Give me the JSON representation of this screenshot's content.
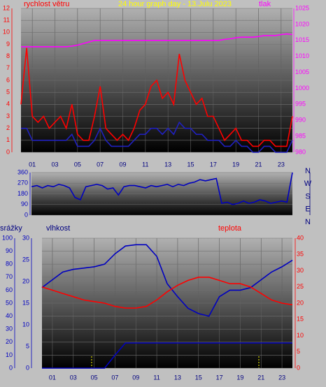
{
  "chart_data": [
    {
      "type": "line",
      "title": "24 hour graph day - 13.Julu 2023",
      "ylabel": "rychlost větru",
      "y2label": "tlak",
      "xlim": [
        0,
        24
      ],
      "xticks": [
        {
          "value": 1,
          "label": "01"
        },
        {
          "value": 3,
          "label": "03"
        },
        {
          "value": 5,
          "label": "05"
        },
        {
          "value": 7,
          "label": "07"
        },
        {
          "value": 9,
          "label": "09"
        },
        {
          "value": 11,
          "label": "11"
        },
        {
          "value": 13,
          "label": "13"
        },
        {
          "value": 15,
          "label": "15"
        },
        {
          "value": 17,
          "label": "17"
        },
        {
          "value": 19,
          "label": "19"
        },
        {
          "value": 21,
          "label": "21"
        },
        {
          "value": 23,
          "label": "23"
        }
      ],
      "ylim": [
        0,
        12
      ],
      "yticks": [
        0,
        1,
        2,
        3,
        4,
        5,
        6,
        7,
        8,
        9,
        10,
        11,
        12
      ],
      "y2lim": [
        980,
        1025
      ],
      "y2ticks": [
        980,
        985,
        990,
        995,
        1000,
        1005,
        1010,
        1015,
        1020,
        1025
      ],
      "grid": true,
      "x": [
        0,
        0.5,
        1,
        1.5,
        2,
        2.5,
        3,
        3.5,
        4,
        4.5,
        5,
        5.5,
        6,
        6.5,
        7,
        7.5,
        8,
        8.5,
        9,
        9.5,
        10,
        10.5,
        11,
        11.5,
        12,
        12.5,
        13,
        13.5,
        14,
        14.5,
        15,
        15.5,
        16,
        16.5,
        17,
        17.5,
        18,
        18.5,
        19,
        19.5,
        20,
        20.5,
        21,
        21.5,
        22,
        22.5,
        23,
        23.5,
        24
      ],
      "series": [
        {
          "color": "#ff0000",
          "values": [
            4,
            8.7,
            3,
            2.5,
            3,
            2,
            2.5,
            3,
            2,
            4,
            1.5,
            1,
            1,
            3,
            5.5,
            2,
            1.5,
            1,
            1.5,
            1,
            2,
            3.5,
            4,
            5.5,
            6,
            4.5,
            5,
            4,
            8.2,
            6,
            5,
            4,
            4.5,
            3,
            3,
            2,
            1,
            1.5,
            2,
            1,
            1,
            0.5,
            0.5,
            1,
            1,
            0.5,
            0.5,
            0.5,
            3
          ]
        },
        {
          "color": "#2020c0",
          "values": [
            2,
            2,
            1,
            1,
            1,
            1,
            1,
            1,
            1,
            1.5,
            0.5,
            0.5,
            0.5,
            1,
            2,
            1,
            0.5,
            0.5,
            0.5,
            0.5,
            1,
            1.5,
            1.5,
            2,
            2,
            1.5,
            2,
            1.5,
            2.5,
            2,
            2,
            1.5,
            1.5,
            1,
            1,
            1,
            0.5,
            0.5,
            1,
            0.5,
            0.5,
            0,
            0,
            0.5,
            0.5,
            0,
            0,
            0,
            1
          ]
        },
        {
          "color": "#ff00ff",
          "axis": "y2",
          "values": [
            1013,
            1013,
            1013,
            1013,
            1013,
            1013,
            1013,
            1013,
            1013,
            1013.2,
            1013.5,
            1014,
            1014.5,
            1015,
            1015,
            1015,
            1015,
            1015,
            1015,
            1015,
            1015,
            1015,
            1015,
            1015,
            1015,
            1015,
            1015,
            1015,
            1015,
            1015,
            1015,
            1015,
            1015,
            1015,
            1015,
            1015,
            1015.3,
            1015.5,
            1015.8,
            1016,
            1016,
            1016,
            1016.2,
            1016.5,
            1016.5,
            1016.5,
            1016.8,
            1017,
            1016.8
          ]
        }
      ]
    },
    {
      "type": "line",
      "xlim": [
        0,
        24
      ],
      "ylim": [
        0,
        360
      ],
      "yticks": [
        0,
        90,
        180,
        270,
        360
      ],
      "y2lim": [
        0,
        360
      ],
      "y2ticks": [
        {
          "value": 360,
          "label": "N"
        },
        {
          "value": 270,
          "label": "W"
        },
        {
          "value": 180,
          "label": "S"
        },
        {
          "value": 90,
          "label": "E"
        },
        {
          "value": 0,
          "label": "N"
        }
      ],
      "grid": true,
      "x": [
        0,
        0.5,
        1,
        1.5,
        2,
        2.5,
        3,
        3.5,
        4,
        4.5,
        5,
        5.5,
        6,
        6.5,
        7,
        7.5,
        8,
        8.5,
        9,
        9.5,
        10,
        10.5,
        11,
        11.5,
        12,
        12.5,
        13,
        13.5,
        14,
        14.5,
        15,
        15.5,
        16,
        16.5,
        17,
        17.5,
        18,
        18.5,
        19,
        19.5,
        20,
        20.5,
        21,
        21.5,
        22,
        22.5,
        23,
        23.5,
        24
      ],
      "series": [
        {
          "color": "#0000c0",
          "values": [
            240,
            250,
            230,
            250,
            240,
            260,
            250,
            230,
            150,
            130,
            240,
            250,
            260,
            250,
            220,
            230,
            170,
            240,
            250,
            250,
            240,
            230,
            250,
            240,
            250,
            260,
            240,
            260,
            250,
            270,
            280,
            300,
            290,
            300,
            310,
            100,
            110,
            90,
            100,
            120,
            100,
            110,
            130,
            120,
            100,
            110,
            120,
            110,
            360
          ]
        }
      ]
    },
    {
      "type": "line",
      "ylabel": "srážky",
      "y2label": "vlhkost",
      "y3label": "teplota",
      "xlim": [
        0,
        24
      ],
      "xticks": [
        {
          "value": 1,
          "label": "01"
        },
        {
          "value": 3,
          "label": "03"
        },
        {
          "value": 5,
          "label": "05"
        },
        {
          "value": 7,
          "label": "07"
        },
        {
          "value": 9,
          "label": "09"
        },
        {
          "value": 11,
          "label": "11"
        },
        {
          "value": 13,
          "label": "13"
        },
        {
          "value": 15,
          "label": "15"
        },
        {
          "value": 17,
          "label": "17"
        },
        {
          "value": 19,
          "label": "19"
        },
        {
          "value": 21,
          "label": "21"
        },
        {
          "value": 23,
          "label": "23"
        }
      ],
      "ylim": [
        0,
        100
      ],
      "yticks": [
        0,
        10,
        20,
        30,
        40,
        50,
        60,
        70,
        80,
        90,
        100
      ],
      "y2lim": [
        0,
        30
      ],
      "y2ticks": [
        0,
        5,
        10,
        15,
        20,
        25,
        30
      ],
      "y3lim": [
        0,
        40
      ],
      "y3ticks": [
        0,
        5,
        10,
        15,
        20,
        25,
        30,
        35,
        40
      ],
      "grid": true,
      "x": [
        0,
        1,
        2,
        3,
        4,
        5,
        6,
        7,
        8,
        9,
        10,
        11,
        12,
        13,
        14,
        15,
        16,
        17,
        18,
        19,
        20,
        21,
        22,
        23,
        24
      ],
      "series": [
        {
          "color": "#0000c0",
          "values": [
            62,
            68,
            74,
            76,
            77,
            78,
            80,
            88,
            94,
            95,
            95,
            86,
            65,
            55,
            46,
            42,
            40,
            55,
            60,
            60,
            62,
            68,
            74,
            78,
            83
          ]
        },
        {
          "color": "#ff0000",
          "axis": "y3",
          "values": [
            25,
            24,
            23,
            22,
            21,
            20.5,
            20,
            19,
            18.5,
            18.5,
            19,
            21,
            23.5,
            25.5,
            27,
            28,
            28,
            27,
            26,
            26,
            25,
            23,
            21,
            20,
            19.5
          ]
        },
        {
          "color": "#0000c0",
          "axis": "y2",
          "values": [
            0,
            0,
            0,
            0,
            0,
            0,
            0,
            3,
            5.8,
            5.8,
            5.8,
            5.8,
            5.8,
            5.8,
            5.8,
            5.8,
            5.8,
            5.8,
            5.8,
            5.8,
            5.8,
            5.8,
            5.8,
            5.8,
            5.8
          ]
        }
      ]
    }
  ]
}
